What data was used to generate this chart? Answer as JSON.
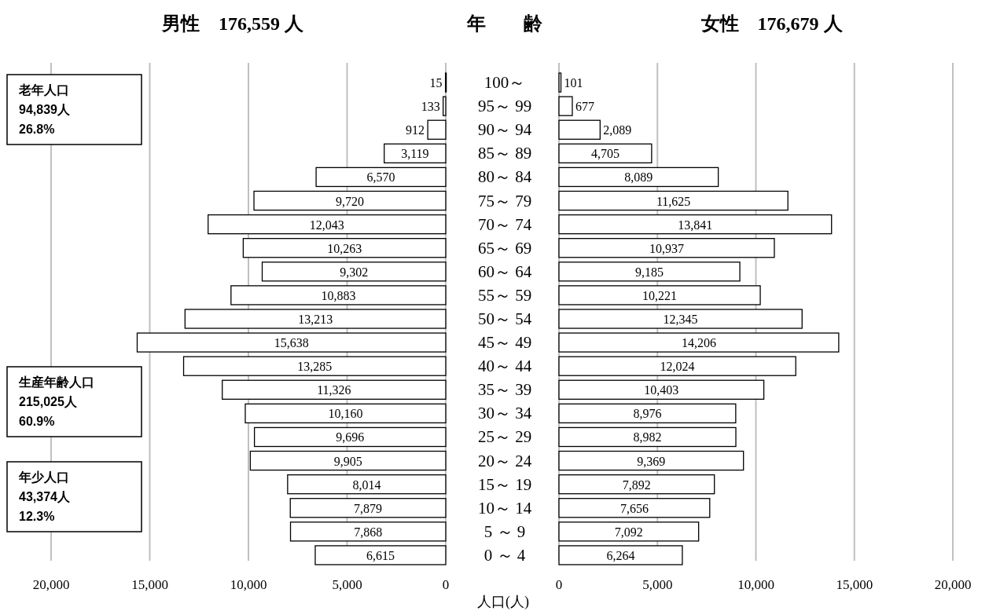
{
  "chart_data": [
    {
      "type": "bar",
      "orientation": "horizontal",
      "title": "男性　176,559 人",
      "grid": "x",
      "value_labels": [
        "15",
        "133",
        "912",
        "3,119",
        "6,570",
        "9,720",
        "12,043",
        "10,263",
        "9,302",
        "10,883",
        "13,213",
        "15,638",
        "13,285",
        "11,326",
        "10,160",
        "9,696",
        "9,905",
        "8,014",
        "7,879",
        "7,868",
        "6,615"
      ],
      "categories": [
        null,
        null,
        null,
        null,
        null,
        null,
        null,
        null,
        null,
        null,
        null,
        null,
        null,
        null,
        null,
        null,
        null,
        null,
        null,
        null,
        null
      ],
      "values": [
        15,
        133,
        912,
        3119,
        6570,
        9720,
        12043,
        10263,
        9302,
        10883,
        13213,
        15638,
        13285,
        11326,
        10160,
        9696,
        9905,
        8014,
        7879,
        7868,
        6615
      ],
      "color": "#ffffff",
      "xlim": [
        20000,
        0
      ],
      "xticks": [
        {
          "value": 20000,
          "label": "20,000"
        },
        {
          "value": 15000,
          "label": "15,000"
        },
        {
          "value": 10000,
          "label": "10,000"
        },
        {
          "value": 5000,
          "label": "5,000"
        },
        0
      ],
      "annotations": [
        "老年人口\n94,839人\n26.8%",
        "生産年齢人口\n215,025人\n60.9%",
        "年少人口\n43,374人\n12.3%"
      ]
    },
    {
      "type": "bar",
      "orientation": "horizontal",
      "title": "女性　176,679 人",
      "ylabel": "年　　齢",
      "xlabel": "人口(人)",
      "grid": "x",
      "value_labels": [
        "101",
        "677",
        "2,089",
        "4,705",
        "8,089",
        "11,625",
        "13,841",
        "10,937",
        "9,185",
        "10,221",
        "12,345",
        "14,206",
        "12,024",
        "10,403",
        "8,976",
        "8,982",
        "9,369",
        "7,892",
        "7,656",
        "7,092",
        "6,264"
      ],
      "categories": [
        "100～",
        "95～ 99",
        "90～ 94",
        "85～ 89",
        "80～ 84",
        "75～ 79",
        "70～ 74",
        "65～ 69",
        "60～ 64",
        "55～ 59",
        "50～ 54",
        "45～ 49",
        "40～ 44",
        "35～ 39",
        "30～ 34",
        "25～ 29",
        "20～ 24",
        "15～ 19",
        "10～ 14",
        "5 ～ 9",
        "0 ～ 4"
      ],
      "values": [
        101,
        677,
        2089,
        4705,
        8089,
        11625,
        13841,
        10937,
        9185,
        10221,
        12345,
        14206,
        12024,
        10403,
        8976,
        8982,
        9369,
        7892,
        7656,
        7092,
        6264
      ],
      "color": "#ffffff",
      "xlim": [
        0,
        20000
      ],
      "xticks": [
        0,
        {
          "value": 5000,
          "label": "5,000"
        },
        {
          "value": 10000,
          "label": "10,000"
        },
        {
          "value": 15000,
          "label": "15,000"
        },
        {
          "value": 20000,
          "label": "20,000"
        }
      ]
    }
  ]
}
